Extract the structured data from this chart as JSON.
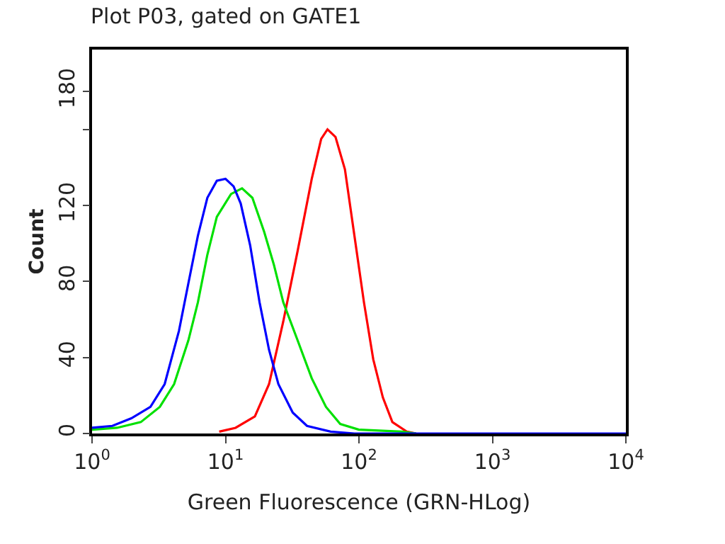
{
  "chart_data": {
    "type": "line",
    "title": "Plot P03, gated on GATE1",
    "xlabel": "Green Fluorescence (GRN-HLog)",
    "ylabel": "Count",
    "log": "x",
    "xlim": [
      1,
      10000
    ],
    "xticks": [
      {
        "value": 1,
        "label": "10$^{0}$"
      },
      {
        "value": 10,
        "label": "10$^{1}$"
      },
      {
        "value": 100,
        "label": "10$^{2}$"
      },
      {
        "value": 1000,
        "label": "10$^{3}$"
      },
      {
        "value": 10000,
        "label": "10$^{4}$"
      }
    ],
    "ylim": [
      0,
      202
    ],
    "yticks": [
      0,
      40,
      80,
      120,
      {
        "value": 160,
        "label": null
      },
      180
    ],
    "marker": "none",
    "line_style": "solid",
    "series": [
      {
        "color": "#ff0000",
        "x": [
          8.97,
          11.9,
          16.6,
          21.2,
          27.1,
          34.7,
          44.3,
          52.1,
          58.1,
          66.7,
          78.5,
          92.5,
          109,
          128,
          151,
          178,
          228,
          268
        ],
        "values": [
          1,
          3,
          9,
          26,
          59,
          96,
          134,
          155,
          160,
          156,
          139,
          104,
          69,
          39,
          19,
          6,
          1,
          0
        ]
      },
      {
        "color": "#00e000",
        "x": [
          1,
          1.54,
          2.32,
          3.22,
          4.12,
          5.27,
          6.21,
          7.31,
          8.61,
          11.0,
          13.3,
          15.9,
          19.5,
          23.0,
          27.1,
          34.7,
          44.3,
          56.6,
          72.4,
          100,
          210,
          268
        ],
        "values": [
          2,
          3,
          6,
          14,
          26,
          49,
          69,
          94,
          114,
          126,
          129,
          124,
          106,
          89,
          69,
          49,
          29,
          14,
          5,
          2,
          1,
          0
        ]
      },
      {
        "color": "#0000ff",
        "x": [
          1,
          1.42,
          1.97,
          2.74,
          3.5,
          4.48,
          5.27,
          6.21,
          7.31,
          8.61,
          10,
          11.5,
          13.0,
          15.3,
          18.0,
          21.2,
          24.9,
          31.9,
          40.8,
          61.4,
          92.5,
          10000
        ],
        "values": [
          3,
          4,
          8,
          14,
          26,
          54,
          79,
          104,
          124,
          133,
          134,
          130,
          121,
          99,
          69,
          44,
          26,
          11,
          4,
          1,
          0,
          0
        ]
      }
    ]
  }
}
